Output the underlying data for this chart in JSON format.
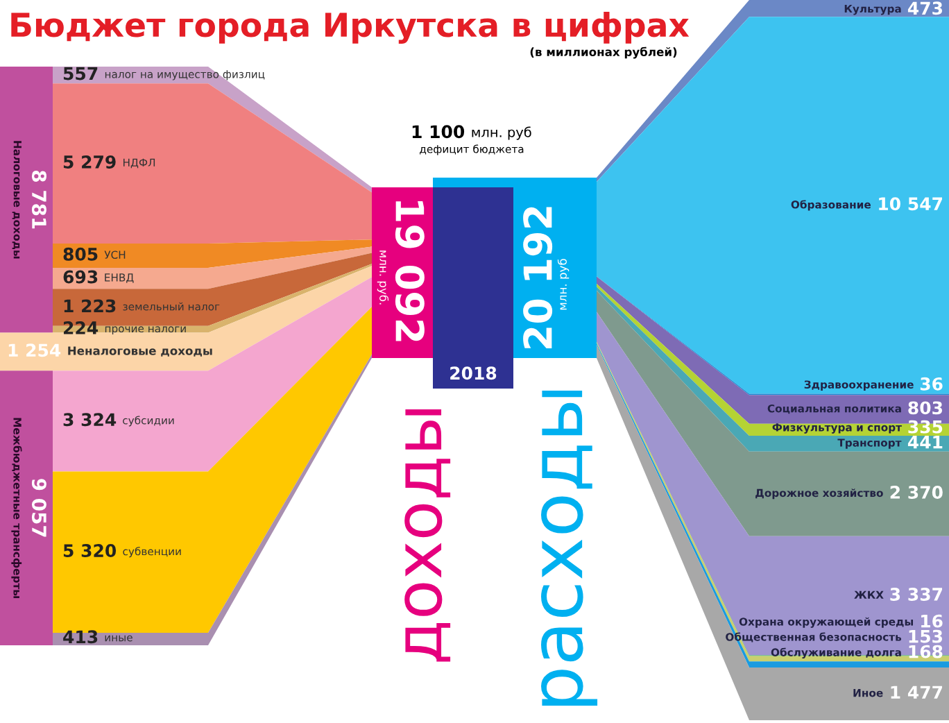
{
  "chart_data": {
    "type": "other",
    "title": "Бюджет города Иркутска в цифрах",
    "subtitle": "(в миллионах рублей)",
    "colors": [
      "#e6007e",
      "#2e3192",
      "#00b0f0"
    ],
    "categories": [
      "налог на имущество физлиц",
      "НДФЛ",
      "УСН",
      "ЕНВД",
      "земельный налог",
      "прочие налоги",
      "Неналоговые доходы",
      "субсидии",
      "субвенции",
      "иные",
      "Культура",
      "Образование",
      "Здравоохранение",
      "Социальная политика",
      "Физкультура и спорт",
      "Транспорт",
      "Дорожное хозяйство",
      "ЖКХ",
      "Охрана окружающей среды",
      "Общественная безопасность",
      "Обслуживание долга",
      "Иное"
    ],
    "series": [
      {
        "name": "Налоговые доходы",
        "color": "#c0509e",
        "values": [
          557,
          5279,
          805,
          693,
          1223,
          224,
          null,
          null,
          null,
          null,
          null,
          null,
          null,
          null,
          null,
          null,
          null,
          null,
          null,
          null,
          null,
          null
        ],
        "value_labels": [
          "557",
          "5 279",
          "805",
          "693",
          "1 223",
          "224",
          null,
          null,
          null,
          null,
          null,
          null,
          null,
          null,
          null,
          null,
          null,
          null,
          null,
          null,
          null,
          null
        ],
        "colors": [
          "#c8a2c8",
          "#f08080",
          "#f08a24",
          "#f5a98f",
          "#c8683a",
          "#d9b36c",
          null,
          null,
          null,
          null,
          null,
          null,
          null,
          null,
          null,
          null,
          null,
          null,
          null,
          null,
          null,
          null
        ]
      },
      {
        "values": [
          null,
          null,
          null,
          null,
          null,
          null,
          1254,
          null,
          null,
          null,
          null,
          null,
          null,
          null,
          null,
          null,
          null,
          null,
          null,
          null,
          null,
          null
        ],
        "value_labels": [
          null,
          null,
          null,
          null,
          null,
          null,
          "1 254",
          null,
          null,
          null,
          null,
          null,
          null,
          null,
          null,
          null,
          null,
          null,
          null,
          null,
          null,
          null
        ],
        "colors": [
          null,
          null,
          null,
          null,
          null,
          null,
          "#fcd5a8",
          null,
          null,
          null,
          null,
          null,
          null,
          null,
          null,
          null,
          null,
          null,
          null,
          null,
          null,
          null
        ]
      },
      {
        "name": "Межбюджетные трансферты",
        "color": "#c0509e",
        "values": [
          null,
          null,
          null,
          null,
          null,
          null,
          null,
          3324,
          5320,
          413,
          null,
          null,
          null,
          null,
          null,
          null,
          null,
          null,
          null,
          null,
          null,
          null
        ],
        "value_labels": [
          null,
          null,
          null,
          null,
          null,
          null,
          null,
          "3 324",
          "5 320",
          "413",
          null,
          null,
          null,
          null,
          null,
          null,
          null,
          null,
          null,
          null,
          null,
          null
        ],
        "colors": [
          null,
          null,
          null,
          null,
          null,
          null,
          null,
          "#f4a6cf",
          "#ffc800",
          "#a98fb0",
          null,
          null,
          null,
          null,
          null,
          null,
          null,
          null,
          null,
          null,
          null,
          null
        ]
      },
      {
        "values": [
          null,
          null,
          null,
          null,
          null,
          null,
          null,
          null,
          null,
          null,
          473,
          10547,
          36,
          803,
          335,
          441,
          2370,
          3337,
          16,
          153,
          168,
          1477
        ],
        "value_labels": [
          null,
          null,
          null,
          null,
          null,
          null,
          null,
          null,
          null,
          null,
          "473",
          "10 547",
          "36",
          "803",
          "335",
          "441",
          "2 370",
          "3 337",
          "16",
          "153",
          "168",
          "1 477"
        ],
        "colors": [
          null,
          null,
          null,
          null,
          null,
          null,
          null,
          null,
          null,
          null,
          "#6b88c6",
          "#3dc3f0",
          "#1a8ad4",
          "#7e6bb5",
          "#b5d334",
          "#4aa8b5",
          "#7f9a8e",
          "#9f95cf",
          "#2aa84a",
          "#c9cf6e",
          "#1a9be0",
          "#a8a8a8"
        ]
      }
    ],
    "totals": [
      "8 781",
      null,
      "9 057",
      null
    ],
    "annotations": [
      "19 092",
      "млн. руб.",
      "2018",
      "20 192",
      "млн. руб",
      "1 100",
      "млн. руб",
      "дефицит бюджета",
      "доходы",
      "расходы"
    ]
  }
}
